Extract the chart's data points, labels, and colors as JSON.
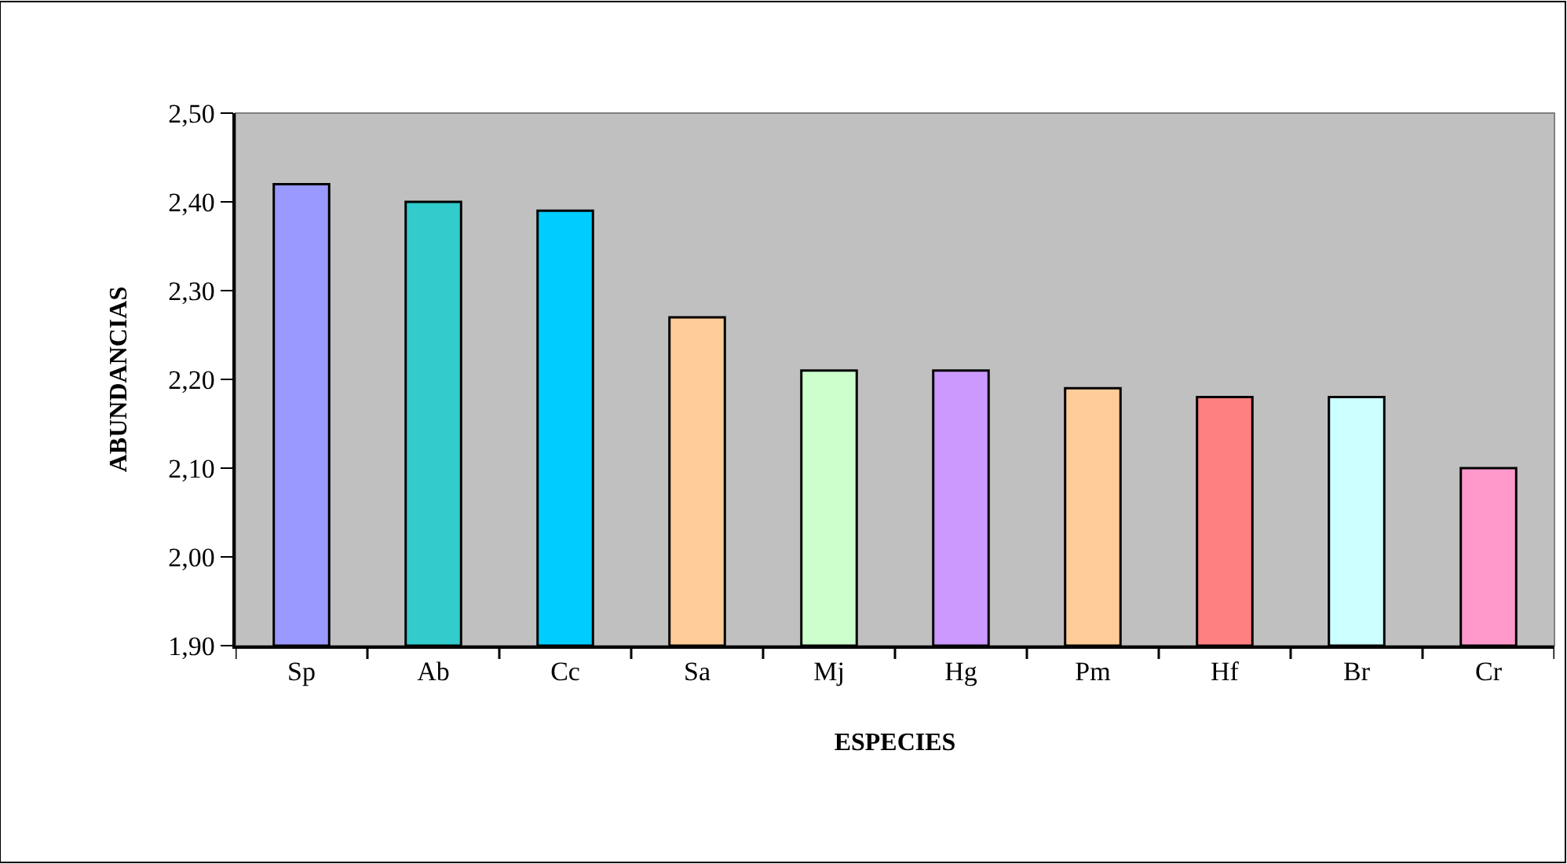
{
  "chart_data": {
    "type": "bar",
    "xlabel": "ESPECIES",
    "ylabel": "ABUNDANCIAS",
    "categories": [
      "Sp",
      "Ab",
      "Cc",
      "Sa",
      "Mj",
      "Hg",
      "Pm",
      "Hf",
      "Br",
      "Cr"
    ],
    "values": [
      2.42,
      2.4,
      2.39,
      2.27,
      2.21,
      2.21,
      2.19,
      2.18,
      2.18,
      2.1
    ],
    "colors": [
      "#9999ff",
      "#33cccc",
      "#00ccff",
      "#ffcc99",
      "#ccffcc",
      "#cc99ff",
      "#ffcc99",
      "#ff8080",
      "#ccffff",
      "#ff99cc"
    ],
    "ylim": [
      1.9,
      2.5
    ],
    "yticks": [
      {
        "value": 1.9,
        "label": "1,90"
      },
      {
        "value": 2.0,
        "label": "2,00"
      },
      {
        "value": 2.1,
        "label": "2,10"
      },
      {
        "value": 2.2,
        "label": "2,20"
      },
      {
        "value": 2.3,
        "label": "2,30"
      },
      {
        "value": 2.4,
        "label": "2,40"
      },
      {
        "value": 2.5,
        "label": "2,50"
      }
    ],
    "grid": false
  }
}
